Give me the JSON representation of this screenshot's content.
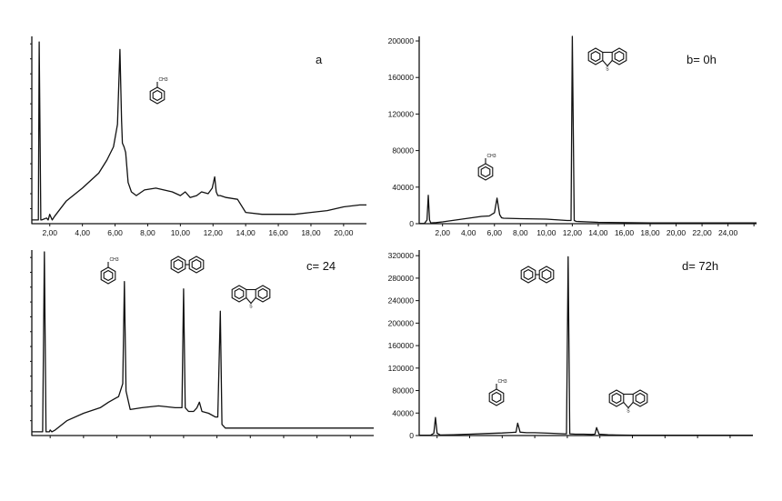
{
  "chart_data": [
    {
      "panel": "a",
      "type": "line",
      "title": "a",
      "xlabel": "",
      "ylabel": "",
      "x_ticks": [
        "2,00",
        "4,00",
        "6,00",
        "8,00",
        "10,00",
        "12,00",
        "14,00",
        "16,00",
        "18,00",
        "20,00"
      ],
      "y_ticks": [],
      "xlim": [
        0.9,
        21.4
      ],
      "ylim": [
        0,
        100
      ],
      "structures": [
        "toluene"
      ],
      "series": [
        {
          "x": [
            0.9,
            1.3,
            1.35,
            1.45,
            1.5,
            1.8,
            1.9,
            2.0,
            2.15,
            2.3,
            3,
            4,
            5,
            5.5,
            5.9,
            6.15,
            6.3,
            6.4,
            6.45,
            6.55,
            6.65,
            6.8,
            7.0,
            7.3,
            7.8,
            8.5,
            9.5,
            10.0,
            10.3,
            10.6,
            11.0,
            11.3,
            11.7,
            11.95,
            12.1,
            12.2,
            12.3,
            12.45,
            12.8,
            13.5,
            14.0,
            15,
            16,
            17,
            18,
            19,
            20,
            21,
            21.4
          ],
          "y": [
            2,
            2,
            97,
            2,
            2,
            3,
            2,
            5,
            2,
            4,
            12,
            19,
            27,
            34,
            41,
            53,
            93,
            55,
            43,
            41,
            38,
            22,
            17,
            15,
            18,
            19,
            17,
            15,
            17,
            14,
            15,
            17,
            16,
            19,
            25,
            17,
            15,
            15,
            14,
            13,
            6,
            5,
            5,
            5,
            6,
            7,
            9,
            10,
            10
          ]
        }
      ]
    },
    {
      "panel": "b",
      "type": "line",
      "title": "b= 0h",
      "xlabel": "",
      "ylabel": "",
      "x_ticks": [
        "2,00",
        "4,00",
        "6,00",
        "8,00",
        "10,00",
        "12,00",
        "14,00",
        "16,00",
        "18,00",
        "20,00",
        "22,00",
        "24,00"
      ],
      "y_ticks": [
        "0",
        "40000",
        "80000",
        "120000",
        "160000",
        "200000"
      ],
      "xlim": [
        0.2,
        26.2
      ],
      "ylim": [
        0,
        205000
      ],
      "structures": [
        "toluene",
        "dibenzothiophene"
      ],
      "series": [
        {
          "x": [
            0.2,
            0.6,
            0.8,
            0.9,
            1.0,
            1.1,
            1.5,
            2,
            3,
            4,
            5,
            5.6,
            6.0,
            6.2,
            6.4,
            6.55,
            6.7,
            8,
            10,
            11.6,
            11.9,
            12.0,
            12.15,
            12.3,
            14,
            18,
            22,
            26.2
          ],
          "y": [
            200,
            200,
            4000,
            31000,
            4000,
            800,
            1200,
            2000,
            4000,
            6000,
            8000,
            8500,
            12000,
            28000,
            10000,
            6500,
            6000,
            5500,
            5000,
            3500,
            3500,
            205000,
            3500,
            2500,
            1500,
            800,
            800,
            800
          ]
        }
      ]
    },
    {
      "panel": "c",
      "type": "line",
      "title": "c= 24",
      "xlabel": "",
      "ylabel": "",
      "x_ticks": [],
      "y_ticks": [],
      "xlim": [
        0.9,
        21.4
      ],
      "ylim": [
        0,
        100
      ],
      "structures": [
        "toluene",
        "biphenyl",
        "dibenzothiophene"
      ],
      "series": [
        {
          "x": [
            0.9,
            1.3,
            1.55,
            1.65,
            1.75,
            1.95,
            2.0,
            2.1,
            2.3,
            3,
            4,
            5,
            5.5,
            5.9,
            6.1,
            6.35,
            6.45,
            6.55,
            6.8,
            7.5,
            8.5,
            9.5,
            9.9,
            10.0,
            10.1,
            10.3,
            10.6,
            10.8,
            10.95,
            11.1,
            11.5,
            11.9,
            12.05,
            12.2,
            12.3,
            12.5,
            13,
            14,
            16,
            18,
            20,
            21.4
          ],
          "y": [
            2,
            2,
            2,
            99,
            2,
            2,
            3,
            2,
            3,
            8,
            12,
            15,
            18,
            20,
            21,
            28,
            83,
            24,
            14,
            15,
            16,
            15,
            15,
            79,
            15,
            13,
            13,
            15,
            18,
            13,
            12,
            10,
            10,
            67,
            6,
            4,
            4,
            4,
            4,
            4,
            4,
            4
          ]
        }
      ]
    },
    {
      "panel": "d",
      "type": "line",
      "title": "d= 72h",
      "xlabel": "",
      "ylabel": "",
      "x_ticks": [],
      "y_ticks": [
        "0",
        "40000",
        "80000",
        "120000",
        "160000",
        "200000",
        "240000",
        "280000",
        "320000"
      ],
      "xlim": [
        0.9,
        21.4
      ],
      "ylim": [
        0,
        330000
      ],
      "structures": [
        "biphenyl",
        "toluene",
        "dibenzothiophene"
      ],
      "series": [
        {
          "x": [
            0.9,
            1.6,
            1.8,
            1.9,
            2.0,
            2.2,
            3,
            4,
            5,
            6,
            6.6,
            6.85,
            6.95,
            7.1,
            7.5,
            8,
            9,
            9.8,
            9.95,
            10.05,
            10.15,
            10.5,
            11,
            11.5,
            11.7,
            11.8,
            11.95,
            12.5,
            13,
            14,
            16,
            18,
            21.4
          ],
          "y": [
            500,
            500,
            4000,
            32000,
            4000,
            1000,
            1500,
            2500,
            3500,
            4500,
            5500,
            6000,
            22000,
            6000,
            5000,
            5000,
            4000,
            3000,
            3000,
            318000,
            3000,
            2500,
            2500,
            2000,
            2500,
            14000,
            2500,
            1500,
            1000,
            500,
            500,
            500,
            500
          ]
        }
      ]
    }
  ]
}
